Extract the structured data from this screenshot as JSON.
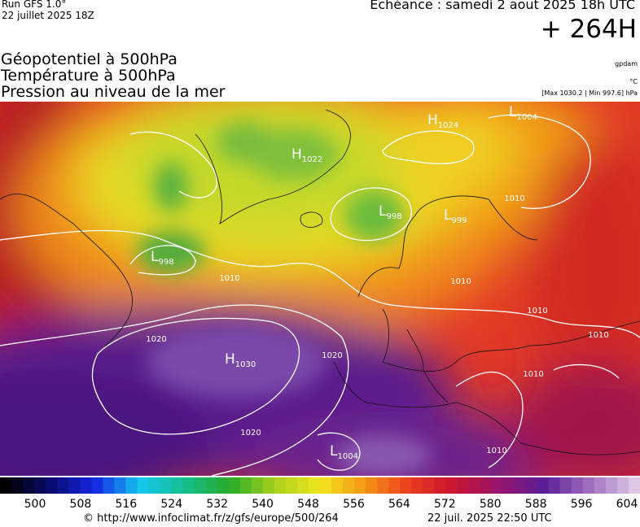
{
  "header": {
    "run": "Run GFS 1.0°",
    "run_date": "22 juillet 2025 18Z",
    "valid": "Echéance : samedi 2 aout 2025 18h UTC",
    "lead": "+ 264H",
    "source": "gpdam",
    "unit": "°C",
    "pressure_range": "[Max 1030.2 | Min 997.6] hPa"
  },
  "titles": [
    "Géopotentiel à 500hPa",
    "Température à 500hPa",
    "Pression au niveau de la mer"
  ],
  "centers": [
    {
      "type": "H",
      "value": 1030
    },
    {
      "type": "H",
      "value": 1024
    },
    {
      "type": "H",
      "value": 1022
    },
    {
      "type": "L",
      "value": 998
    },
    {
      "type": "L",
      "value": 998
    },
    {
      "type": "L",
      "value": 999
    },
    {
      "type": "L",
      "value": 1004
    },
    {
      "type": "L",
      "value": 1004
    }
  ],
  "isobar_labels": [
    1010,
    1020,
    1020,
    1020,
    1010,
    1010,
    1010,
    1010,
    1010,
    1010
  ],
  "scale_labels": [
    500,
    508,
    516,
    524,
    532,
    540,
    548,
    556,
    564,
    572,
    580,
    588,
    596,
    604
  ],
  "footer": {
    "url": "© http://www.infoclimat.fr/z/gfs/europe/500/264",
    "timestamp": "22 juil. 2025 22:50 UTC"
  }
}
